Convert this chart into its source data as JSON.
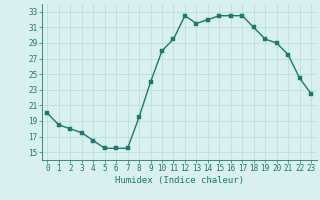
{
  "x": [
    0,
    1,
    2,
    3,
    4,
    5,
    6,
    7,
    8,
    9,
    10,
    11,
    12,
    13,
    14,
    15,
    16,
    17,
    18,
    19,
    20,
    21,
    22,
    23
  ],
  "y": [
    20,
    18.5,
    18,
    17.5,
    16.5,
    15.5,
    15.5,
    15.5,
    19.5,
    24,
    28,
    29.5,
    32.5,
    31.5,
    32,
    32.5,
    32.5,
    32.5,
    31,
    29.5,
    29,
    27.5,
    24.5,
    22.5
  ],
  "line_color": "#1a7a6e",
  "marker_color": "#1a7a6e",
  "bg_color": "#d8f0ee",
  "grid_color": "#b8dbd8",
  "xlabel": "Humidex (Indice chaleur)",
  "ylim": [
    14,
    34
  ],
  "xlim": [
    -0.5,
    23.5
  ],
  "yticks": [
    15,
    17,
    19,
    21,
    23,
    25,
    27,
    29,
    31,
    33
  ],
  "xticks": [
    0,
    1,
    2,
    3,
    4,
    5,
    6,
    7,
    8,
    9,
    10,
    11,
    12,
    13,
    14,
    15,
    16,
    17,
    18,
    19,
    20,
    21,
    22,
    23
  ],
  "xlabel_fontsize": 6.5,
  "tick_fontsize": 5.5,
  "line_width": 1.0,
  "marker_size": 2.5
}
